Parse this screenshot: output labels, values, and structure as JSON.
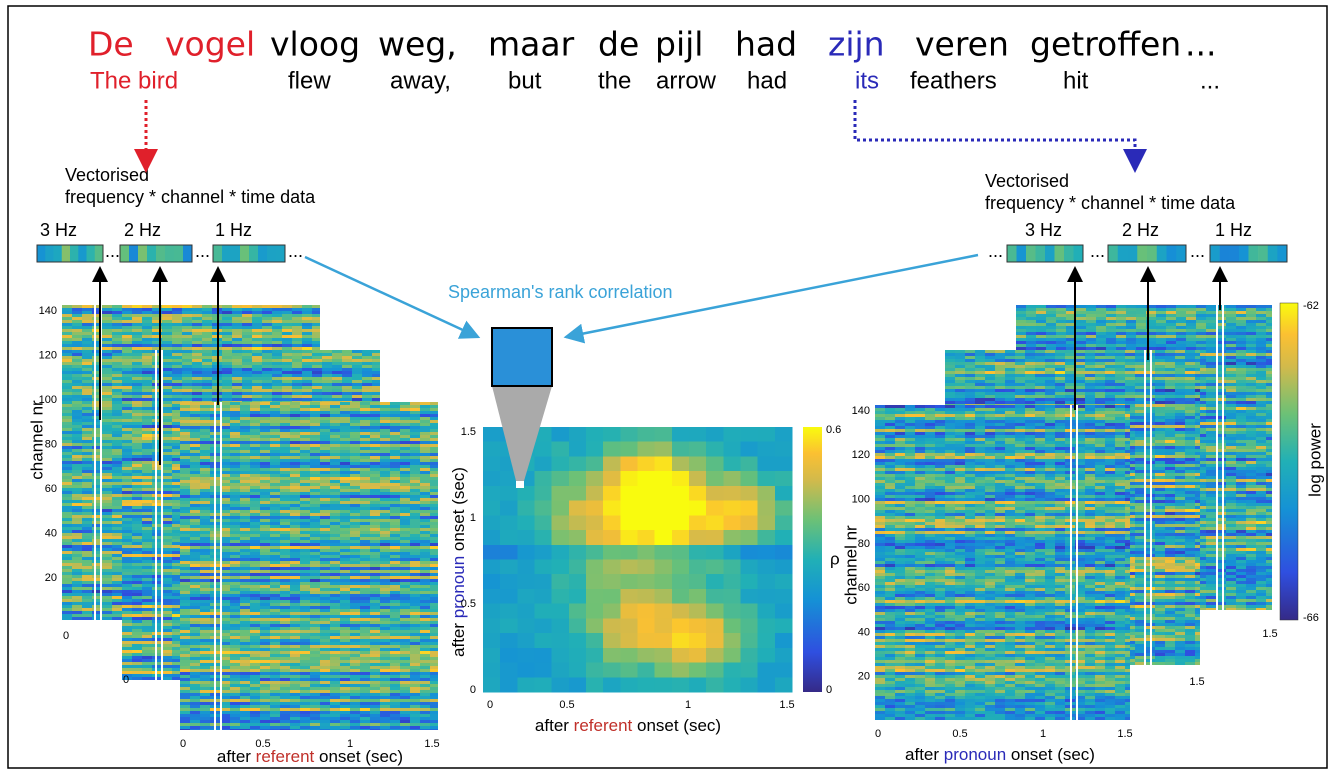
{
  "sentence": {
    "dutch": [
      "De",
      "vogel",
      "vloog",
      "weg,",
      "maar",
      "de",
      "pijl",
      "had",
      "zijn",
      "veren",
      "getroffen",
      "..."
    ],
    "english": [
      "The bird",
      "flew",
      "away,",
      "but",
      "the",
      "arrow",
      "had",
      "its",
      "feathers",
      "hit",
      "..."
    ]
  },
  "ellipsis": "...",
  "caption": [
    "Vectorised",
    "frequency * channel * time data"
  ],
  "frequencies": [
    "3 Hz",
    "2 Hz",
    "1 Hz"
  ],
  "correlation_label": "Spearman's rank correlation",
  "left_panel": {
    "y_label": "channel nr",
    "y_ticks": [
      "140",
      "120",
      "100",
      "80",
      "60",
      "40",
      "20"
    ],
    "x_ticks": [
      "0",
      "0.5",
      "1",
      "1.5"
    ],
    "x_label": [
      "after ",
      "referent",
      " onset (sec)"
    ],
    "stack_ticks": [
      "0",
      "0"
    ]
  },
  "center_panel": {
    "y_label": [
      "after ",
      "pronoun",
      " onset (sec)"
    ],
    "y_ticks": [
      "1.5",
      "1",
      "0.5",
      "0"
    ],
    "x_ticks": [
      "0",
      "0.5",
      "1",
      "1.5"
    ],
    "x_label": [
      "after ",
      "referent",
      " onset (sec)"
    ],
    "colorbar": {
      "label": "ρ",
      "max": "0.6",
      "min": "0"
    }
  },
  "right_panel": {
    "y_label": "channel nr",
    "y_ticks": [
      "140",
      "120",
      "100",
      "80",
      "60",
      "40",
      "20"
    ],
    "x_ticks": [
      "0",
      "0.5",
      "1",
      "1.5"
    ],
    "x_label": [
      "after ",
      "pronoun",
      " onset (sec)"
    ],
    "stack_ticks": [
      "1.5",
      "1.5"
    ],
    "colorbar": {
      "label": "log power",
      "max": "-62",
      "min": "-66"
    }
  }
}
